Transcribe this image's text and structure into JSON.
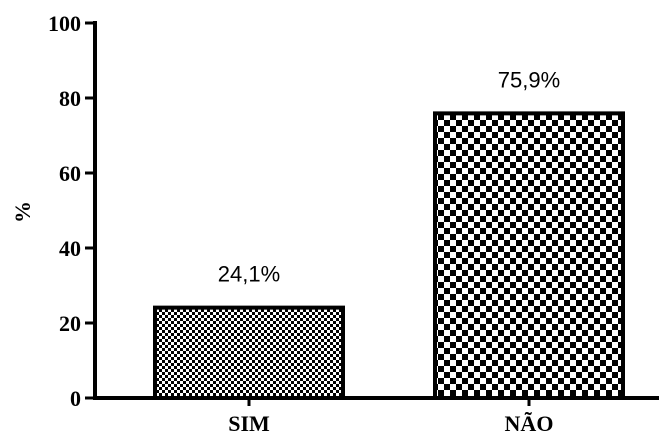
{
  "chart_data": {
    "type": "bar",
    "categories": [
      "SIM",
      "NÃO"
    ],
    "values": [
      24.1,
      75.9
    ],
    "data_labels": [
      "24,1%",
      "75,9%"
    ],
    "title": "",
    "xlabel": "",
    "ylabel": "%",
    "ylim": [
      0,
      100
    ],
    "yticks": [
      0,
      20,
      40,
      60,
      80,
      100
    ],
    "ytick_labels": [
      "0",
      "20",
      "40",
      "60",
      "80",
      "100"
    ],
    "grid": false,
    "legend": "none",
    "series": [
      {
        "values": [
          24.1,
          75.9
        ],
        "patterns": [
          "fine-checker",
          "coarse-checker"
        ]
      }
    ],
    "colors": {
      "bar_fill_dark": "#000000",
      "bar_fill_light": "#ffffff",
      "axis": "#000000"
    }
  }
}
